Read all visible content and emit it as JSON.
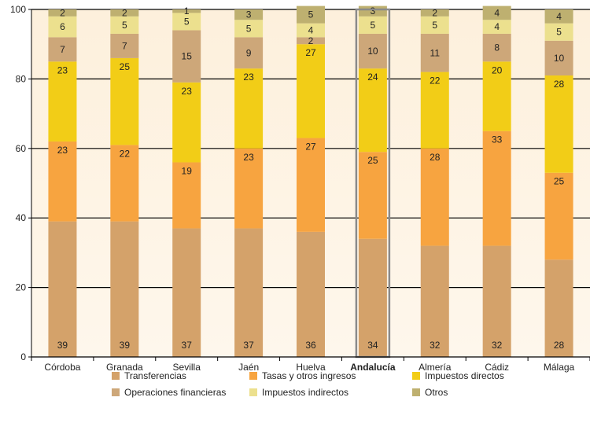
{
  "chart_data": {
    "type": "bar",
    "stacked": true,
    "categories": [
      "Córdoba",
      "Granada",
      "Sevilla",
      "Jaén",
      "Huelva",
      "Andalucía",
      "Almería",
      "Cádiz",
      "Málaga"
    ],
    "highlight_category": "Andalucía",
    "ylim": [
      0,
      100
    ],
    "yticks": [
      0,
      20,
      40,
      60,
      80,
      100
    ],
    "grid": "horizontal",
    "legend_position": "bottom",
    "series": [
      {
        "name": "Transferencias",
        "color": "#D4A26A",
        "values": [
          39,
          39,
          37,
          37,
          36,
          34,
          32,
          32,
          28
        ]
      },
      {
        "name": "Tasas y otros ingresos",
        "color": "#F7A440",
        "values": [
          23,
          22,
          19,
          23,
          27,
          25,
          28,
          33,
          25
        ]
      },
      {
        "name": "Impuestos directos",
        "color": "#F2CD17",
        "values": [
          23,
          25,
          23,
          23,
          27,
          24,
          22,
          20,
          28
        ]
      },
      {
        "name": "Operaciones financieras",
        "color": "#CDA779",
        "values": [
          7,
          7,
          15,
          9,
          2,
          10,
          11,
          8,
          10
        ]
      },
      {
        "name": "Impuestos indirectos",
        "color": "#ECE08E",
        "values": [
          6,
          5,
          5,
          5,
          4,
          5,
          5,
          4,
          5
        ]
      },
      {
        "name": "Otros",
        "color": "#BEB070",
        "values": [
          2,
          2,
          1,
          3,
          5,
          3,
          2,
          4,
          4
        ]
      }
    ],
    "legend_order": [
      "Transferencias",
      "Tasas y otros ingresos",
      "Impuestos directos",
      "Operaciones financieras",
      "Impuestos indirectos",
      "Otros"
    ]
  },
  "colors": {
    "background_top": "#FDF0DC",
    "background_bottom": "#FEF7EC",
    "gridline": "#000000",
    "highlight_outline": "#8A8A8A"
  }
}
